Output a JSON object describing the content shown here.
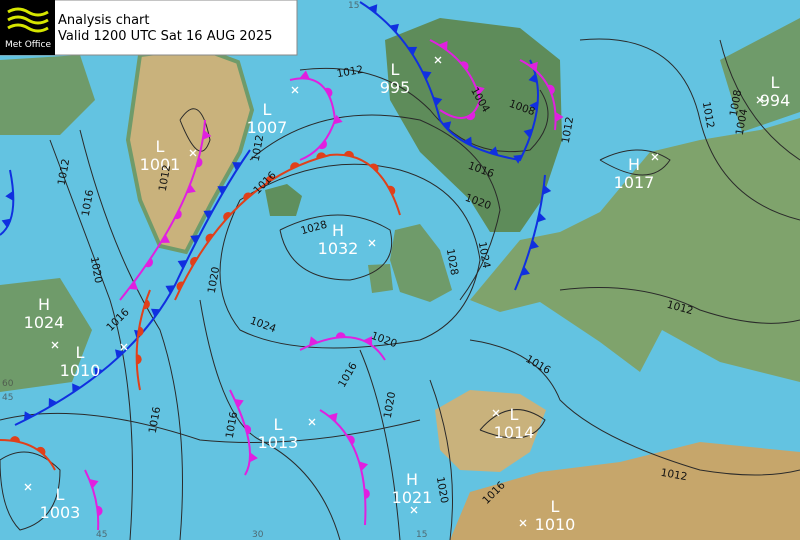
{
  "header": {
    "logo": "Met Office",
    "title": "Analysis chart",
    "valid": "Valid 1200 UTC Sat 16 AUG 2025"
  },
  "pressure_centres": [
    {
      "kind": "L",
      "value": 995
    },
    {
      "kind": "L",
      "value": 994
    },
    {
      "kind": "L",
      "value": 1007
    },
    {
      "kind": "L",
      "value": 1001
    },
    {
      "kind": "H",
      "value": 1017
    },
    {
      "kind": "H",
      "value": 1032
    },
    {
      "kind": "H",
      "value": 1024
    },
    {
      "kind": "L",
      "value": 1010
    },
    {
      "kind": "L",
      "value": 1014
    },
    {
      "kind": "L",
      "value": 1013
    },
    {
      "kind": "H",
      "value": 1021
    },
    {
      "kind": "L",
      "value": 1003
    },
    {
      "kind": "L",
      "value": 1010
    }
  ],
  "isobar_labels": [
    1012,
    1004,
    1008,
    1012,
    1012,
    1008,
    1004,
    1016,
    1020,
    1024,
    1028,
    1028,
    1016,
    1012,
    1012,
    1012,
    1016,
    1020,
    1016,
    1020,
    1024,
    1020,
    1016,
    1016,
    1016,
    1020,
    1020,
    1016,
    1016,
    1012,
    1012
  ],
  "graticule_labels": [
    "15",
    "60",
    "45",
    "45",
    "30",
    "15"
  ]
}
